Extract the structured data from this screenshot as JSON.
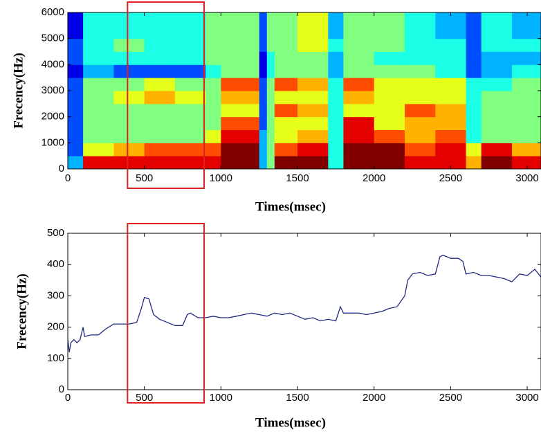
{
  "chart_data": [
    {
      "type": "heatmap",
      "ylabel": "Frecency(Hz)",
      "xlabel": "Times(msec)",
      "colormap": "jet",
      "zlim": [
        0,
        10
      ],
      "xbins": [
        0,
        100,
        300,
        500,
        700,
        900,
        1000,
        1250,
        1300,
        1350,
        1500,
        1700,
        1800,
        2000,
        2200,
        2400,
        2600,
        2700,
        2900,
        3090
      ],
      "ybins": [
        0,
        500,
        1000,
        1500,
        2000,
        2500,
        3000,
        3500,
        4000,
        4500,
        5000,
        6000
      ],
      "z": [
        [
          3,
          9,
          9,
          9,
          9,
          9,
          10,
          3,
          5,
          10,
          10,
          4,
          10,
          10,
          9,
          9,
          7,
          10,
          9
        ],
        [
          2,
          6,
          7,
          8,
          8,
          8,
          10,
          3,
          5,
          8,
          9,
          4,
          10,
          10,
          8,
          9,
          6,
          9,
          7
        ],
        [
          2,
          5,
          5,
          5,
          5,
          6,
          9,
          3,
          5,
          6,
          7,
          4,
          9,
          8,
          7,
          8,
          4,
          5,
          5
        ],
        [
          2,
          5,
          5,
          5,
          5,
          5,
          8,
          2,
          5,
          6,
          6,
          4,
          9,
          6,
          7,
          7,
          4,
          5,
          5
        ],
        [
          2,
          5,
          5,
          5,
          5,
          5,
          6,
          2,
          5,
          8,
          7,
          4,
          6,
          6,
          8,
          7,
          4,
          5,
          5
        ],
        [
          2,
          5,
          6,
          7,
          6,
          5,
          7,
          2,
          5,
          6,
          6,
          4,
          7,
          6,
          6,
          6,
          4,
          5,
          5
        ],
        [
          2,
          5,
          5,
          6,
          5,
          5,
          8,
          2,
          5,
          8,
          7,
          4,
          8,
          6,
          6,
          6,
          4,
          4,
          5
        ],
        [
          1,
          3,
          2,
          2,
          2,
          4,
          5,
          1,
          4,
          5,
          5,
          3,
          5,
          5,
          5,
          4,
          2,
          3,
          4
        ],
        [
          2,
          4,
          4,
          4,
          4,
          5,
          5,
          1,
          4,
          5,
          5,
          3,
          5,
          4,
          4,
          4,
          2,
          3,
          3
        ],
        [
          2,
          4,
          5,
          4,
          4,
          5,
          5,
          2,
          5,
          5,
          6,
          4,
          5,
          5,
          4,
          4,
          2,
          4,
          4
        ],
        [
          1,
          4,
          4,
          4,
          4,
          5,
          5,
          2,
          5,
          5,
          6,
          3,
          5,
          5,
          4,
          3,
          2,
          4,
          3
        ]
      ],
      "xlim": [
        0,
        3090
      ],
      "ylim": [
        0,
        6000
      ],
      "xticks": [
        0,
        500,
        1000,
        1500,
        2000,
        2500,
        3000
      ],
      "yticks": [
        0,
        1000,
        2000,
        3000,
        4000,
        5000,
        6000
      ],
      "highlight": {
        "x": [
          390,
          890
        ],
        "color": "#e02020"
      }
    },
    {
      "type": "line",
      "ylabel": "Frecency(Hz)",
      "xlabel": "Times(msec)",
      "color": "#1f2a80",
      "x": [
        0,
        10,
        20,
        40,
        60,
        80,
        100,
        110,
        150,
        200,
        250,
        300,
        350,
        400,
        450,
        480,
        500,
        530,
        560,
        600,
        650,
        700,
        750,
        780,
        800,
        850,
        900,
        950,
        1000,
        1050,
        1100,
        1150,
        1200,
        1250,
        1300,
        1350,
        1400,
        1450,
        1500,
        1550,
        1600,
        1650,
        1700,
        1750,
        1780,
        1800,
        1850,
        1900,
        1950,
        2000,
        2050,
        2100,
        2150,
        2200,
        2220,
        2250,
        2300,
        2350,
        2400,
        2430,
        2450,
        2500,
        2550,
        2580,
        2600,
        2650,
        2700,
        2750,
        2800,
        2850,
        2900,
        2950,
        3000,
        3050,
        3090
      ],
      "values": [
        160,
        120,
        150,
        160,
        150,
        160,
        200,
        170,
        175,
        175,
        195,
        210,
        210,
        210,
        215,
        260,
        295,
        290,
        240,
        225,
        215,
        205,
        205,
        240,
        245,
        230,
        230,
        235,
        230,
        230,
        235,
        240,
        245,
        240,
        235,
        245,
        240,
        245,
        235,
        225,
        230,
        220,
        225,
        220,
        265,
        245,
        245,
        245,
        240,
        245,
        250,
        260,
        265,
        300,
        350,
        370,
        375,
        365,
        370,
        425,
        430,
        420,
        420,
        410,
        370,
        375,
        365,
        365,
        360,
        355,
        345,
        370,
        365,
        385,
        360
      ],
      "xlim": [
        0,
        3090
      ],
      "ylim": [
        0,
        500
      ],
      "xticks": [
        0,
        500,
        1000,
        1500,
        2000,
        2500,
        3000
      ],
      "yticks": [
        0,
        100,
        200,
        300,
        400,
        500
      ],
      "highlight": {
        "x": [
          390,
          890
        ],
        "color": "#e02020"
      }
    }
  ]
}
